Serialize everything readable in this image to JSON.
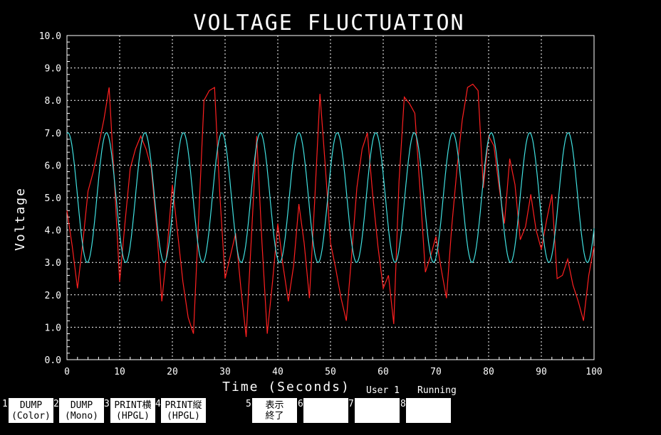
{
  "chart_data": {
    "type": "line",
    "title": "VOLTAGE FLUCTUATION",
    "xlabel": "Time (Seconds)",
    "ylabel": "Voltage",
    "xlim": [
      0,
      100
    ],
    "ylim": [
      0,
      10
    ],
    "xticks": [
      "0",
      "10",
      "20",
      "30",
      "40",
      "50",
      "60",
      "70",
      "80",
      "90",
      "100"
    ],
    "yticks": [
      "0.0",
      "1.0",
      "2.0",
      "3.0",
      "4.0",
      "5.0",
      "6.0",
      "7.0",
      "8.0",
      "9.0",
      "10.0"
    ],
    "grid": true,
    "colors": {
      "background": "#000000",
      "axes": "#ffffff",
      "grid": "#ffffff",
      "title": "#ffffff"
    },
    "series": [
      {
        "color": "#ff2020",
        "x": [
          0,
          1,
          2,
          3,
          4,
          5,
          6,
          7,
          8,
          9,
          10,
          11,
          12,
          13,
          14,
          15,
          16,
          17,
          18,
          19,
          20,
          21,
          22,
          23,
          24,
          25,
          26,
          27,
          28,
          29,
          30,
          31,
          32,
          33,
          34,
          35,
          36,
          37,
          38,
          39,
          40,
          41,
          42,
          43,
          44,
          45,
          46,
          47,
          48,
          49,
          50,
          51,
          52,
          53,
          54,
          55,
          56,
          57,
          58,
          59,
          60,
          61,
          62,
          63,
          64,
          65,
          66,
          67,
          68,
          69,
          70,
          71,
          72,
          73,
          74,
          75,
          76,
          77,
          78,
          79,
          80,
          81,
          82,
          83,
          84,
          85,
          86,
          87,
          88,
          89,
          90,
          91,
          92,
          93,
          94,
          95,
          96,
          97,
          98,
          99,
          100
        ],
        "y": [
          4.6,
          3.5,
          2.2,
          3.6,
          5.2,
          5.8,
          6.6,
          7.4,
          8.4,
          5.5,
          2.4,
          4.2,
          5.9,
          6.5,
          6.9,
          6.5,
          5.9,
          4.1,
          1.8,
          3.4,
          5.4,
          3.9,
          2.4,
          1.3,
          0.8,
          4.4,
          8.0,
          8.3,
          8.4,
          5.1,
          2.5,
          3.2,
          3.9,
          2.2,
          0.7,
          3.8,
          6.9,
          3.6,
          0.8,
          2.4,
          4.2,
          2.9,
          1.8,
          2.9,
          4.8,
          3.6,
          1.9,
          4.9,
          8.2,
          6.0,
          3.6,
          2.8,
          1.9,
          1.2,
          3.2,
          5.3,
          6.5,
          7.0,
          5.1,
          3.5,
          2.2,
          2.6,
          1.1,
          5.5,
          8.1,
          7.9,
          7.6,
          5.2,
          2.7,
          3.2,
          3.8,
          2.8,
          1.9,
          4.1,
          5.9,
          7.4,
          8.4,
          8.5,
          8.3,
          5.3,
          6.9,
          6.6,
          5.3,
          4.2,
          6.2,
          5.4,
          3.7,
          4.1,
          5.1,
          4.0,
          3.4,
          4.3,
          5.1,
          2.5,
          2.6,
          3.1,
          2.3,
          1.8,
          1.2,
          2.6,
          3.5
        ]
      },
      {
        "color": "#40e0e0",
        "function": "5 + 2*sin(2*pi*t/7.3 + 1.4)",
        "x": [
          0,
          100
        ]
      }
    ]
  },
  "fkeys": [
    {
      "num": "1",
      "line1": "DUMP",
      "line2": "(Color)"
    },
    {
      "num": "2",
      "line1": "DUMP",
      "line2": "(Mono)"
    },
    {
      "num": "3",
      "line1": "PRINT横",
      "line2": "(HPGL)"
    },
    {
      "num": "4",
      "line1": "PRINT縦",
      "line2": "(HPGL)"
    },
    {
      "num": "5",
      "line1": "表示",
      "line2": "終了"
    },
    {
      "num": "6",
      "line1": "",
      "line2": ""
    },
    {
      "num": "7",
      "line1": "",
      "line2": ""
    },
    {
      "num": "8",
      "line1": "",
      "line2": ""
    }
  ],
  "status": {
    "user": "User 1",
    "state": "Running"
  }
}
